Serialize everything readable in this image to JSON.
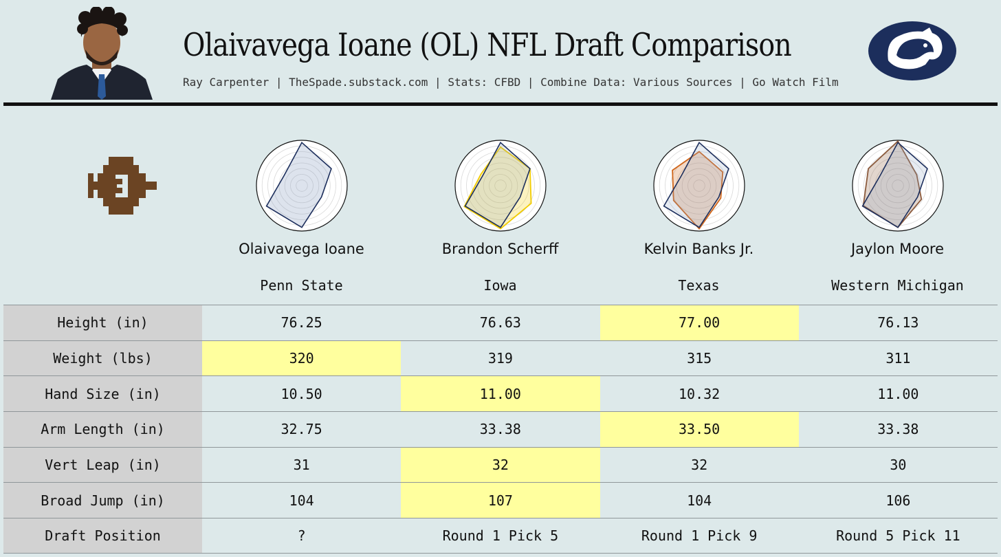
{
  "header": {
    "title": "Olaivavega Ioane (OL) NFL Draft Comparison",
    "subtitle": "Ray Carpenter | TheSpade.substack.com | Stats: CFBD | Combine Data: Various Sources | Go Watch Film"
  },
  "icons": {
    "photo": "player-headshot",
    "logo": "penn-state-nittany-lion-logo",
    "emblem": "pixel-spade-emblem"
  },
  "colors": {
    "background": "#dde9ea",
    "highlight": "#ffff9e",
    "label_column": "#d2d2d2",
    "ioane": "#1c2e5c",
    "scherff": "#f2cc00",
    "banks": "#d0661b",
    "moore": "#8b5a3c"
  },
  "chart_data": {
    "type": "table",
    "players": [
      {
        "name": "Olaivavega Ioane",
        "school": "Penn State"
      },
      {
        "name": "Brandon Scherff",
        "school": "Iowa"
      },
      {
        "name": "Kelvin Banks Jr.",
        "school": "Texas"
      },
      {
        "name": "Jaylon Moore",
        "school": "Western Michigan"
      }
    ],
    "rows": [
      {
        "label": "Height (in)",
        "values": [
          "76.25",
          "76.63",
          "77.00",
          "76.13"
        ],
        "best": 2
      },
      {
        "label": "Weight (lbs)",
        "values": [
          "320",
          "319",
          "315",
          "311"
        ],
        "best": 0
      },
      {
        "label": "Hand Size (in)",
        "values": [
          "10.50",
          "11.00",
          "10.32",
          "11.00"
        ],
        "best": 1
      },
      {
        "label": "Arm Length (in)",
        "values": [
          "32.75",
          "33.38",
          "33.50",
          "33.38"
        ],
        "best": 2
      },
      {
        "label": "Vert Leap (in)",
        "values": [
          "31",
          "32",
          "32",
          "30"
        ],
        "best": 1
      },
      {
        "label": "Broad Jump (in)",
        "values": [
          "104",
          "107",
          "104",
          "106"
        ],
        "best": 1
      },
      {
        "label": "Draft Position",
        "values": [
          "?",
          "Round 1 Pick 5",
          "Round 1 Pick 9",
          "Round 5 Pick 11"
        ],
        "best": -1
      }
    ],
    "radar": {
      "type": "radar",
      "axes": 6,
      "range": [
        0,
        1
      ],
      "rings": 8,
      "base": [
        0.95,
        0.75,
        0.5,
        0.92,
        0.9,
        0.45
      ],
      "series": [
        {
          "color": "#f2cc00",
          "values": [
            0.85,
            0.75,
            0.78,
            0.95,
            0.92,
            0.5
          ]
        },
        {
          "color": "#d0661b",
          "values": [
            0.75,
            0.6,
            0.55,
            0.95,
            0.65,
            0.68
          ]
        },
        {
          "color": "#8b5a3c",
          "values": [
            0.98,
            0.48,
            0.6,
            0.92,
            0.88,
            0.75
          ]
        }
      ]
    }
  }
}
